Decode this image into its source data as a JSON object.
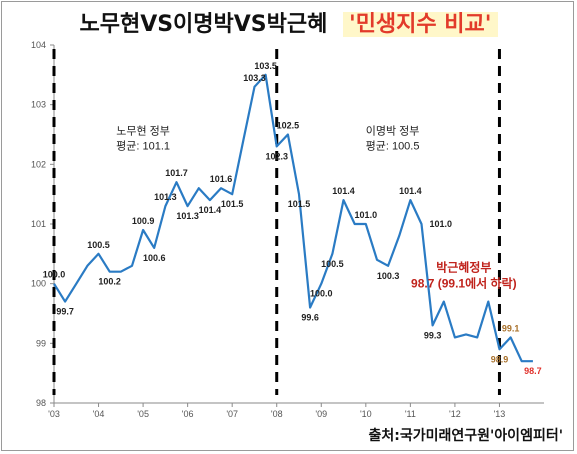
{
  "title": "노무현VS이명박VS박근혜",
  "subtitle": "'민생지수 비교'",
  "source": "출처:국가미래연구원'아이엠피터'",
  "colors": {
    "line": "#2a7bc4",
    "divider": "#000000",
    "label": "#222222",
    "highlight": "#c0231c",
    "orange_label": "#a8702a",
    "red_label": "#e0302a",
    "axis_text": "#555555"
  },
  "chart_data": {
    "type": "line",
    "ylim": [
      98,
      104
    ],
    "yticks": [
      "98",
      "99",
      "100",
      "101",
      "102",
      "103",
      "104"
    ],
    "xticks": [
      "'03",
      "'04",
      "'05",
      "'06",
      "'07",
      "'08",
      "'09",
      "'10",
      "'11",
      "'12",
      "'13"
    ],
    "xlim": [
      2003,
      2014.0
    ],
    "grid": false,
    "series": [
      {
        "x": [
          2003.0,
          2003.25,
          2003.5,
          2003.75,
          2004.0,
          2004.25,
          2004.5,
          2004.75,
          2005.0,
          2005.25,
          2005.5,
          2005.75,
          2006.0,
          2006.25,
          2006.5,
          2006.75,
          2007.0,
          2007.25,
          2007.5,
          2007.75,
          2008.0,
          2008.25,
          2008.5,
          2008.75,
          2009.0,
          2009.25,
          2009.5,
          2009.75,
          2010.0,
          2010.25,
          2010.5,
          2010.75,
          2011.0,
          2011.25,
          2011.5,
          2011.75,
          2012.0,
          2012.25,
          2012.5,
          2012.75,
          2013.0,
          2013.25,
          2013.5,
          2013.75
        ],
        "values": [
          100.0,
          99.7,
          100.0,
          100.3,
          100.5,
          100.2,
          100.2,
          100.3,
          100.9,
          100.6,
          101.3,
          101.7,
          101.3,
          101.6,
          101.4,
          101.6,
          101.5,
          102.4,
          103.3,
          103.5,
          102.3,
          102.5,
          101.5,
          99.6,
          100.0,
          100.5,
          101.4,
          101.0,
          101.0,
          100.4,
          100.3,
          100.8,
          101.4,
          101.0,
          99.3,
          99.7,
          99.1,
          99.15,
          99.1,
          99.7,
          98.9,
          99.1,
          98.7,
          98.7
        ]
      }
    ],
    "data_labels": [
      {
        "text": "100.0",
        "x": 2003.0,
        "y": 100.0,
        "pos": "above",
        "color": "label"
      },
      {
        "text": "99.7",
        "x": 2003.25,
        "y": 99.7,
        "pos": "below",
        "color": "label"
      },
      {
        "text": "100.5",
        "x": 2004.0,
        "y": 100.5,
        "pos": "above",
        "color": "label"
      },
      {
        "text": "100.2",
        "x": 2004.25,
        "y": 100.2,
        "pos": "below",
        "color": "label"
      },
      {
        "text": "100.9",
        "x": 2005.0,
        "y": 100.9,
        "pos": "above",
        "color": "label"
      },
      {
        "text": "100.6",
        "x": 2005.25,
        "y": 100.6,
        "pos": "below",
        "color": "label"
      },
      {
        "text": "101.3",
        "x": 2005.5,
        "y": 101.3,
        "pos": "above",
        "color": "label"
      },
      {
        "text": "101.7",
        "x": 2005.75,
        "y": 101.7,
        "pos": "above",
        "color": "label"
      },
      {
        "text": "101.3",
        "x": 2006.0,
        "y": 101.3,
        "pos": "below",
        "color": "label"
      },
      {
        "text": "101.4",
        "x": 2006.5,
        "y": 101.4,
        "pos": "below",
        "color": "label"
      },
      {
        "text": "101.6",
        "x": 2006.75,
        "y": 101.6,
        "pos": "above",
        "color": "label"
      },
      {
        "text": "101.5",
        "x": 2007.0,
        "y": 101.5,
        "pos": "below",
        "color": "label"
      },
      {
        "text": "103.3",
        "x": 2007.5,
        "y": 103.3,
        "pos": "above",
        "color": "label"
      },
      {
        "text": "103.5",
        "x": 2007.75,
        "y": 103.5,
        "pos": "above",
        "color": "label"
      },
      {
        "text": "102.3",
        "x": 2008.0,
        "y": 102.3,
        "pos": "below",
        "color": "label"
      },
      {
        "text": "102.5",
        "x": 2008.25,
        "y": 102.5,
        "pos": "above",
        "color": "label"
      },
      {
        "text": "101.5",
        "x": 2008.5,
        "y": 101.5,
        "pos": "below",
        "color": "label"
      },
      {
        "text": "99.6",
        "x": 2008.75,
        "y": 99.6,
        "pos": "below",
        "color": "label"
      },
      {
        "text": "100.0",
        "x": 2009.0,
        "y": 100.0,
        "pos": "below",
        "color": "label"
      },
      {
        "text": "100.5",
        "x": 2009.25,
        "y": 100.5,
        "pos": "below",
        "color": "label"
      },
      {
        "text": "101.4",
        "x": 2009.5,
        "y": 101.4,
        "pos": "above",
        "color": "label"
      },
      {
        "text": "101.0",
        "x": 2010.0,
        "y": 101.0,
        "pos": "above",
        "color": "label"
      },
      {
        "text": "100.3",
        "x": 2010.5,
        "y": 100.3,
        "pos": "below",
        "color": "label"
      },
      {
        "text": "101.4",
        "x": 2011.0,
        "y": 101.4,
        "pos": "above",
        "color": "label"
      },
      {
        "text": "101.0",
        "x": 2011.25,
        "y": 101.0,
        "pos": "right",
        "color": "label"
      },
      {
        "text": "99.3",
        "x": 2011.5,
        "y": 99.3,
        "pos": "below",
        "color": "label"
      },
      {
        "text": "99.1",
        "x": 2013.25,
        "y": 99.1,
        "pos": "above",
        "color": "orange_label"
      },
      {
        "text": "98.9",
        "x": 2013.0,
        "y": 98.9,
        "pos": "below",
        "color": "orange_label"
      },
      {
        "text": "98.7",
        "x": 2013.75,
        "y": 98.7,
        "pos": "below",
        "color": "red_label"
      }
    ],
    "dividers": [
      2003.0,
      2008.0,
      2013.0
    ],
    "annotations": [
      {
        "lines": [
          "노무현 정부",
          "평균: 101.1"
        ],
        "x": 2005.0,
        "y": 102.5,
        "color": "label"
      },
      {
        "lines": [
          "이명박 정부",
          "평균: 100.5"
        ],
        "x": 2010.6,
        "y": 102.5,
        "color": "label"
      },
      {
        "lines": [
          "박근혜정부",
          "98.7 (99.1에서 하락)"
        ],
        "x": 2012.2,
        "y": 100.2,
        "color": "highlight"
      }
    ]
  }
}
